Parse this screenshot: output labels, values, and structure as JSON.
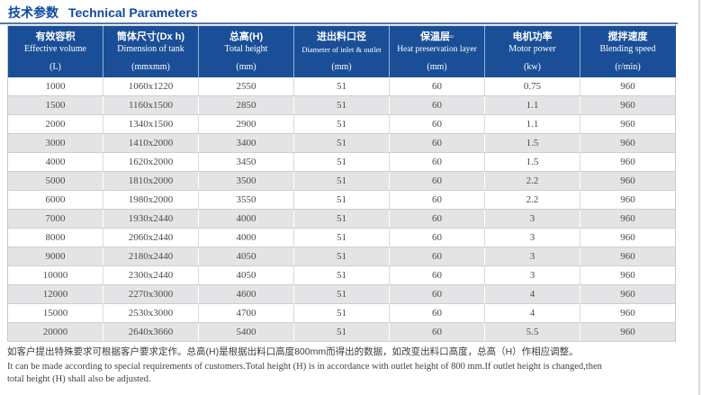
{
  "title": {
    "zh": "技术参数",
    "en": "Technical Parameters"
  },
  "table": {
    "columns": [
      {
        "zh": "有效容积",
        "en": "Effective volume",
        "unit": "(L)"
      },
      {
        "zh": "筒体尺寸(Dx h)",
        "en": "Dimension of tank",
        "unit": "(mmxmm)"
      },
      {
        "zh": "总高(H)",
        "en": "Total height",
        "unit": "(mm)"
      },
      {
        "zh": "进出料口径",
        "en": "Diameter of inlet & outlet",
        "unit": "(mm)"
      },
      {
        "zh": "保温层▫",
        "en": "Heat preservation layer",
        "unit": "(mm)"
      },
      {
        "zh": "电机功率",
        "en": "Motor power",
        "unit": "(kw)"
      },
      {
        "zh": "搅拌速度",
        "en": "Blending speed",
        "unit": "(r/min)"
      }
    ],
    "rows": [
      [
        "1000",
        "1060x1220",
        "2550",
        "51",
        "60",
        "0.75",
        "960"
      ],
      [
        "1500",
        "1160x1500",
        "2850",
        "51",
        "60",
        "1.1",
        "960"
      ],
      [
        "2000",
        "1340x1500",
        "2900",
        "51",
        "60",
        "1.1",
        "960"
      ],
      [
        "3000",
        "1410x2000",
        "3400",
        "51",
        "60",
        "1.5",
        "960"
      ],
      [
        "4000",
        "1620x2000",
        "3450",
        "51",
        "60",
        "1.5",
        "960"
      ],
      [
        "5000",
        "1810x2000",
        "3500",
        "51",
        "60",
        "2.2",
        "960"
      ],
      [
        "6000",
        "1980x2000",
        "3550",
        "51",
        "60",
        "2.2",
        "960"
      ],
      [
        "7000",
        "1930x2440",
        "4000",
        "51",
        "60",
        "3",
        "960"
      ],
      [
        "8000",
        "2060x2440",
        "4000",
        "51",
        "60",
        "3",
        "960"
      ],
      [
        "9000",
        "2180x2440",
        "4050",
        "51",
        "60",
        "3",
        "960"
      ],
      [
        "10000",
        "2300x2440",
        "4050",
        "51",
        "60",
        "3",
        "960"
      ],
      [
        "12000",
        "2270x3000",
        "4600",
        "51",
        "60",
        "4",
        "960"
      ],
      [
        "15000",
        "2530x3000",
        "4700",
        "51",
        "60",
        "4",
        "960"
      ],
      [
        "20000",
        "2640x3660",
        "5400",
        "51",
        "60",
        "5.5",
        "960"
      ]
    ]
  },
  "notes": {
    "zh": "如客户提出特殊要求可根据客户要求定作。总高(H)是根据出料口高度800mm而得出的数据，如改变出料口高度，总高（H）作相应调整。",
    "en1": "It can be made according to special requirements of customers.Total height (H) is in accordance with outlet height of 800 mm.If outlet height is changed,then",
    "en2": "total height (H) shall also be adjusted."
  },
  "colors": {
    "header_bg": "#1a4f98",
    "title_color": "#0e4a9e",
    "alt_row": "#e4e4e6",
    "rule": "#56789f",
    "border": "#c9c9cb"
  }
}
